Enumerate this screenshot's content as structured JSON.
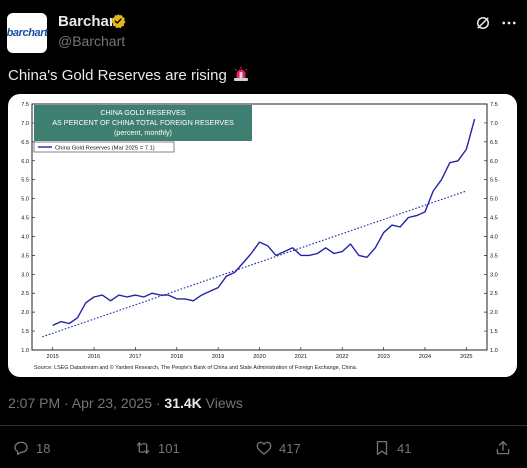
{
  "post": {
    "author_name": "Barchart",
    "handle": "@Barchart",
    "avatar_text": "barchart",
    "text": "China's Gold Reserves are rising",
    "emoji": "siren-emoji",
    "timestamp": "2:07 PM · Apr 23, 2025 · ",
    "views_count": "31.4K",
    "views_label": " Views"
  },
  "actions": {
    "replies": "18",
    "reposts": "101",
    "likes": "417",
    "bookmarks": "41"
  },
  "icons": {
    "verified": "verified-badge-icon",
    "grok": "grok-icon",
    "more": "more-options-icon",
    "reply": "reply-icon",
    "repost": "repost-icon",
    "like": "heart-icon",
    "bookmark": "bookmark-icon",
    "share": "share-icon"
  },
  "colors": {
    "background": "#000000",
    "text": "#e7e9ea",
    "muted": "#71767b",
    "verified_gold": "#e2b719",
    "title_box": "#3f7f72",
    "series": "#2323a8"
  },
  "chart_data": {
    "type": "line",
    "title_lines": [
      "CHINA GOLD RESERVES",
      "AS PERCENT OF CHINA TOTAL FOREIGN RESERVES",
      "(percent, monthly)"
    ],
    "legend": "China Gold Reserves (Mar 2025 = 7.1)",
    "source": "Source: LSEG Datastream and © Yardeni Research, The People's Bank of China and State Administration of Foreign Exchange, China.",
    "x_ticks": [
      "2015",
      "2016",
      "2017",
      "2018",
      "2019",
      "2020",
      "2021",
      "2022",
      "2023",
      "2024",
      "2025"
    ],
    "y_ticks": [
      "1.0",
      "1.5",
      "2.0",
      "2.5",
      "3.0",
      "3.5",
      "4.0",
      "4.5",
      "5.0",
      "5.5",
      "6.0",
      "6.5",
      "7.0",
      "7.5"
    ],
    "xlim": [
      2014.5,
      2025.5
    ],
    "ylim": [
      1.0,
      7.5
    ],
    "grid": false,
    "legend_position": "top-left",
    "series": [
      {
        "x": [
          2015.0,
          2015.2,
          2015.4,
          2015.6,
          2015.8,
          2016.0,
          2016.2,
          2016.4,
          2016.6,
          2016.8,
          2017.0,
          2017.2,
          2017.4,
          2017.6,
          2017.8,
          2018.0,
          2018.2,
          2018.4,
          2018.6,
          2018.8,
          2019.0,
          2019.2,
          2019.4,
          2019.6,
          2019.8,
          2020.0,
          2020.2,
          2020.4,
          2020.6,
          2020.8,
          2021.0,
          2021.2,
          2021.4,
          2021.6,
          2021.8,
          2022.0,
          2022.2,
          2022.4,
          2022.6,
          2022.8,
          2023.0,
          2023.2,
          2023.4,
          2023.6,
          2023.8,
          2024.0,
          2024.2,
          2024.4,
          2024.6,
          2024.8,
          2025.0,
          2025.2
        ],
        "y": [
          1.65,
          1.75,
          1.7,
          1.85,
          2.25,
          2.4,
          2.45,
          2.3,
          2.45,
          2.4,
          2.45,
          2.4,
          2.5,
          2.45,
          2.45,
          2.35,
          2.35,
          2.3,
          2.45,
          2.55,
          2.65,
          2.95,
          3.05,
          3.3,
          3.55,
          3.85,
          3.75,
          3.5,
          3.6,
          3.7,
          3.5,
          3.5,
          3.55,
          3.7,
          3.55,
          3.6,
          3.8,
          3.5,
          3.45,
          3.7,
          4.1,
          4.3,
          4.25,
          4.5,
          4.55,
          4.65,
          5.2,
          5.5,
          5.95,
          6.0,
          6.3,
          7.1
        ]
      },
      {
        "x": [
          2014.75,
          2025.0
        ],
        "y": [
          1.35,
          5.2
        ]
      }
    ]
  }
}
